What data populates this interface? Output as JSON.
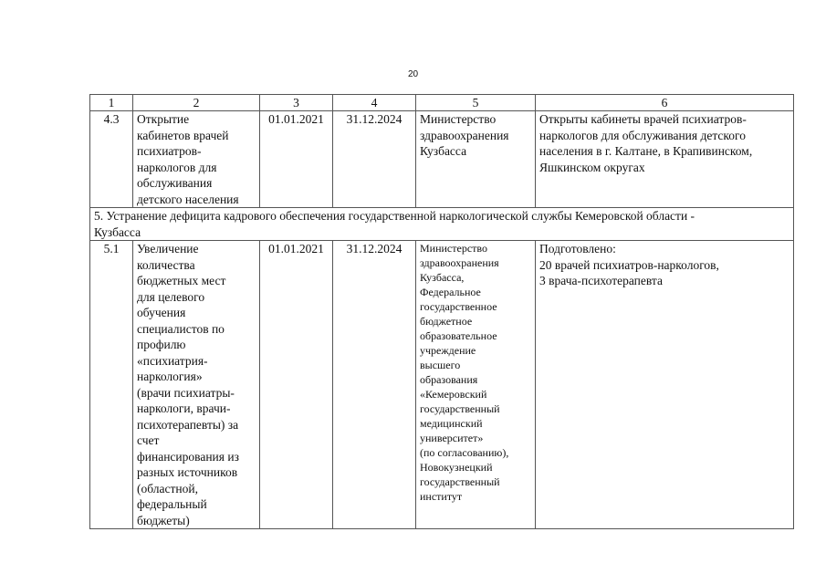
{
  "page_number": "20",
  "header": [
    "1",
    "2",
    "3",
    "4",
    "5",
    "6"
  ],
  "rows": [
    {
      "num": "4.3",
      "name": "Открытие\nкабинетов врачей\nпсихиатров-\nнаркологов для\nобслуживания\nдетского населения",
      "start": "01.01.2021",
      "end": "31.12.2024",
      "executor": "Министерство\nздравоохранения\nКузбасса",
      "result": "Открыты кабинеты врачей психиатров-\nнаркологов для обслуживания детского\nнаселения в г. Калтане, в Крапивинском,\nЯшкинском округах"
    },
    {
      "section": "5. Устранение дефицита кадрового обеспечения государственной наркологической службы Кемеровской области -\nКузбасса"
    },
    {
      "num": "5.1",
      "name": "Увеличение\nколичества\nбюджетных мест\nдля целевого\nобучения\nспециалистов по\nпрофилю\n«психиатрия-\nнаркология»\n(врачи психиатры-\nнаркологи, врачи-\nпсихотерапевты) за\nсчет\nфинансирования из\nразных источников\n(областной,\nфедеральный\nбюджеты)",
      "start": "01.01.2021",
      "end": "31.12.2024",
      "executor": "Министерство\nздравоохранения\nКузбасса,\nФедеральное\nгосударственное\nбюджетное\nобразовательное\nучреждение\nвысшего\nобразования\n«Кемеровский\nгосударственный\nмедицинский\nуниверситет»\n(по согласованию),\nНовокузнецкий\nгосударственный\nинститут",
      "result": "Подготовлено:\n20 врачей психиатров-наркологов,\n3 врача-психотерапевта"
    }
  ]
}
